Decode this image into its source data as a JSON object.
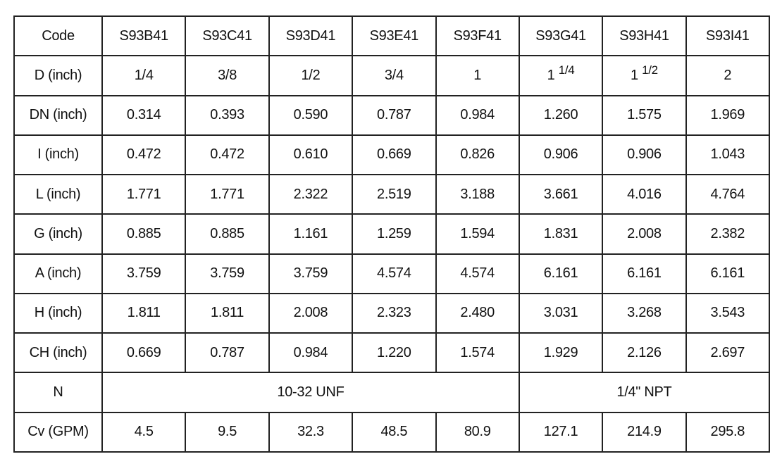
{
  "table": {
    "header": {
      "label": "Code",
      "cells": [
        "S93B41",
        "S93C41",
        "S93D41",
        "S93E41",
        "S93F41",
        "S93G41",
        "S93H41",
        "S93I41"
      ]
    },
    "d_row": {
      "label": "D (inch)",
      "cells": [
        {
          "whole": "",
          "frac": "1/4"
        },
        {
          "whole": "",
          "frac": "3/8"
        },
        {
          "whole": "",
          "frac": "1/2"
        },
        {
          "whole": "",
          "frac": "3/4"
        },
        {
          "whole": "1",
          "frac": ""
        },
        {
          "whole": "1",
          "sup": "1/4"
        },
        {
          "whole": "1",
          "sup": "1/2"
        },
        {
          "whole": "2",
          "frac": ""
        }
      ]
    },
    "rows": [
      {
        "label": "DN (inch)",
        "cells": [
          "0.314",
          "0.393",
          "0.590",
          "0.787",
          "0.984",
          "1.260",
          "1.575",
          "1.969"
        ]
      },
      {
        "label": "I (inch)",
        "cells": [
          "0.472",
          "0.472",
          "0.610",
          "0.669",
          "0.826",
          "0.906",
          "0.906",
          "1.043"
        ]
      },
      {
        "label": "L (inch)",
        "cells": [
          "1.771",
          "1.771",
          "2.322",
          "2.519",
          "3.188",
          "3.661",
          "4.016",
          "4.764"
        ]
      },
      {
        "label": "G (inch)",
        "cells": [
          "0.885",
          "0.885",
          "1.161",
          "1.259",
          "1.594",
          "1.831",
          "2.008",
          "2.382"
        ]
      },
      {
        "label": "A (inch)",
        "cells": [
          "3.759",
          "3.759",
          "3.759",
          "4.574",
          "4.574",
          "6.161",
          "6.161",
          "6.161"
        ]
      },
      {
        "label": "H (inch)",
        "cells": [
          "1.811",
          "1.811",
          "2.008",
          "2.323",
          "2.480",
          "3.031",
          "3.268",
          "3.543"
        ]
      },
      {
        "label": "CH (inch)",
        "cells": [
          "0.669",
          "0.787",
          "0.984",
          "1.220",
          "1.574",
          "1.929",
          "2.126",
          "2.697"
        ]
      }
    ],
    "n_row": {
      "label": "N",
      "group1": "10-32 UNF",
      "group2": "1/4\" NPT"
    },
    "cv_row": {
      "label": "Cv (GPM)",
      "cells": [
        "4.5",
        "9.5",
        "32.3",
        "48.5",
        "80.9",
        "127.1",
        "214.9",
        "295.8"
      ]
    }
  }
}
